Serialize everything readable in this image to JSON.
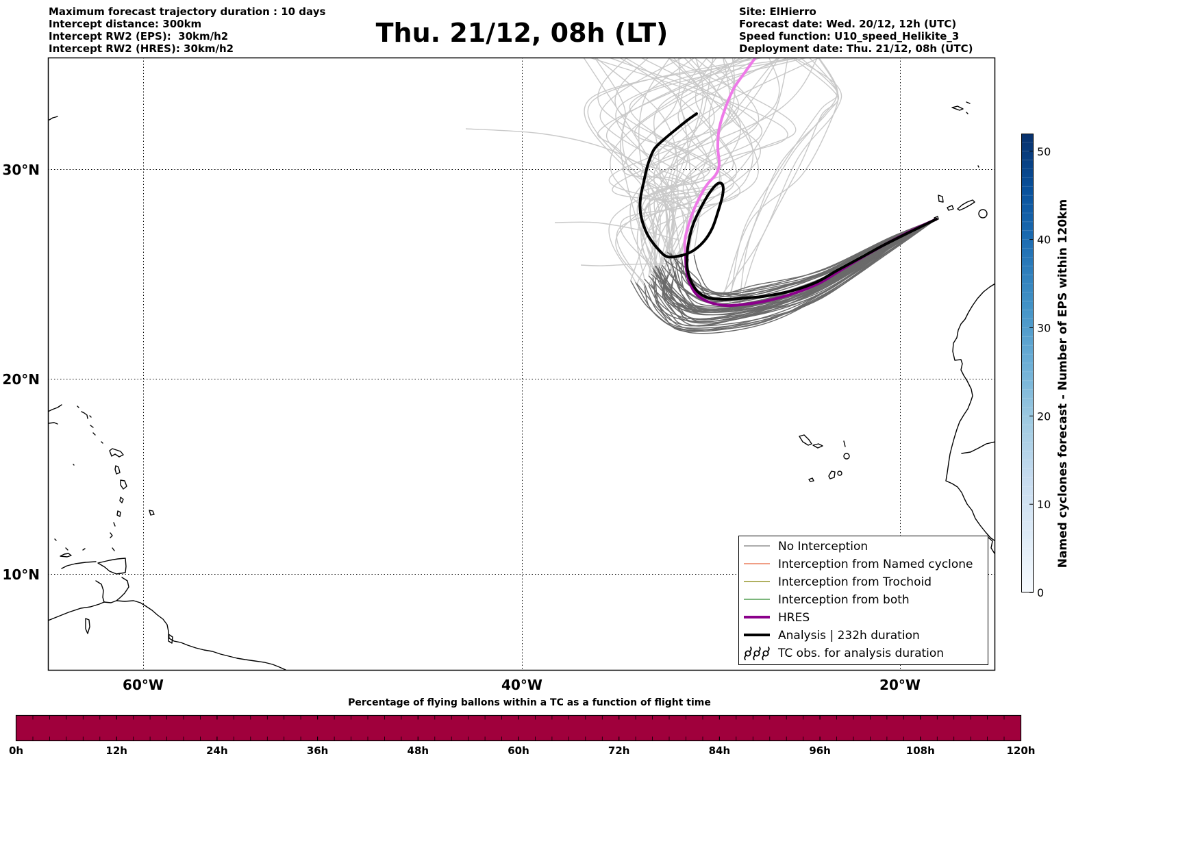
{
  "header_left": {
    "line1": "Maximum forecast trajectory duration : 10 days",
    "line2": "Intercept distance: 300km",
    "line3": "Intercept RW2 (EPS):  30km/h2",
    "line4": "Intercept RW2 (HRES): 30km/h2"
  },
  "title": "Thu. 21/12, 08h (LT)",
  "header_right": {
    "line1": "Site: ElHierro",
    "line2": "Forecast date: Wed. 20/12, 12h (UTC)",
    "line3": "Speed function: U10_speed_Helikite_3",
    "line4": "Deployment date: Thu. 21/12, 08h (UTC)"
  },
  "map": {
    "lat_labels": [
      "30°N",
      "20°N",
      "10°N"
    ],
    "lon_labels": [
      "60°W",
      "40°W",
      "20°W"
    ]
  },
  "legend": {
    "entries": [
      {
        "label": "No Interception",
        "color": "#7a7a7a"
      },
      {
        "label": "Interception from Named cyclone",
        "color": "#e8643c"
      },
      {
        "label": "Interception from Trochoid",
        "color": "#808000"
      },
      {
        "label": "Interception from both",
        "color": "#2e8b2e"
      },
      {
        "label": "HRES",
        "color": "#8b008b"
      },
      {
        "label": "Analysis | 232h duration",
        "color": "#000000"
      },
      {
        "label": "TC obs. for analysis duration",
        "icon": "tc-symbol-icon"
      }
    ]
  },
  "colorbar": {
    "label": "Named cyclones forecast - Number of EPS within 120km",
    "ticks": [
      "0",
      "10",
      "20",
      "30",
      "40",
      "50"
    ]
  },
  "timeline": {
    "title": "Percentage of flying ballons within a TC as a function of flight time",
    "ticks": [
      "0h",
      "12h",
      "24h",
      "36h",
      "48h",
      "60h",
      "72h",
      "84h",
      "96h",
      "108h",
      "120h"
    ],
    "fill_color": "#a0003c"
  },
  "colors": {
    "eps_early": "#6a6a6a",
    "eps_late": "#c9c9c9",
    "hres_early": "#8b008b",
    "hres_late": "#ee7ae8",
    "analysis": "#000000"
  }
}
